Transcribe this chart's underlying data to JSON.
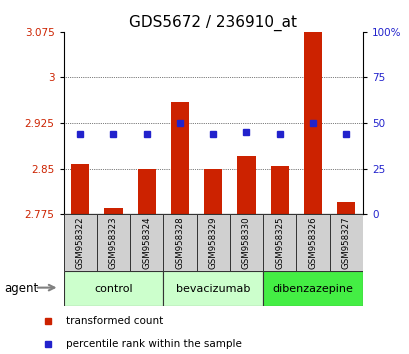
{
  "title": "GDS5672 / 236910_at",
  "samples": [
    "GSM958322",
    "GSM958323",
    "GSM958324",
    "GSM958328",
    "GSM958329",
    "GSM958330",
    "GSM958325",
    "GSM958326",
    "GSM958327"
  ],
  "bar_values": [
    2.858,
    2.785,
    2.85,
    2.96,
    2.849,
    2.87,
    2.855,
    3.115,
    2.795
  ],
  "percentile_values": [
    44,
    44,
    44,
    50,
    44,
    45,
    44,
    50,
    44
  ],
  "groups": [
    {
      "label": "control",
      "indices": [
        0,
        1,
        2
      ],
      "color": "#ccffcc"
    },
    {
      "label": "bevacizumab",
      "indices": [
        3,
        4,
        5
      ],
      "color": "#ccffcc"
    },
    {
      "label": "dibenzazepine",
      "indices": [
        6,
        7,
        8
      ],
      "color": "#44ee44"
    }
  ],
  "ylim_left": [
    2.775,
    3.075
  ],
  "ylim_right": [
    0,
    100
  ],
  "yticks_left": [
    2.775,
    2.85,
    2.925,
    3.0,
    3.075
  ],
  "ytick_labels_left": [
    "2.775",
    "2.85",
    "2.925",
    "3",
    "3.075"
  ],
  "yticks_right": [
    0,
    25,
    50,
    75,
    100
  ],
  "ytick_labels_right": [
    "0",
    "25",
    "50",
    "75",
    "100%"
  ],
  "bar_color": "#cc2200",
  "dot_color": "#2222cc",
  "bar_bottom": 2.775,
  "agent_label": "agent",
  "legend_bar": "transformed count",
  "legend_dot": "percentile rank within the sample",
  "title_fontsize": 11,
  "tick_fontsize": 7.5,
  "sample_fontsize": 6.2,
  "group_fontsize": 8,
  "legend_fontsize": 7.5
}
